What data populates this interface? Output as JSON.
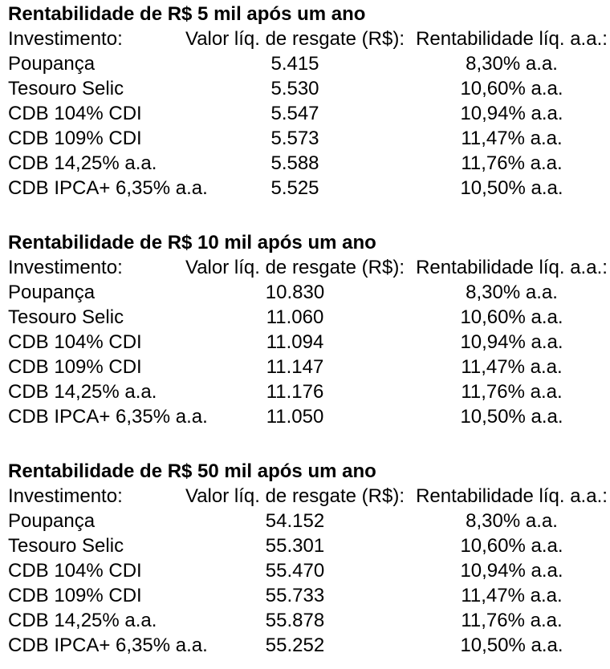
{
  "page": {
    "background_color": "#ffffff",
    "text_color": "#000000"
  },
  "sections": [
    {
      "title": "Rentabilidade de R$ 5 mil após um ano",
      "columns": [
        "Investimento:",
        "Valor líq. de resgate (R$):",
        "Rentabilidade líq. a.a.:"
      ],
      "rows": [
        {
          "investimento": "Poupança",
          "valor": "5.415",
          "rentabilidade": "8,30% a.a."
        },
        {
          "investimento": "Tesouro Selic",
          "valor": "5.530",
          "rentabilidade": "10,60% a.a."
        },
        {
          "investimento": "CDB 104% CDI",
          "valor": "5.547",
          "rentabilidade": "10,94% a.a."
        },
        {
          "investimento": "CDB 109% CDI",
          "valor": "5.573",
          "rentabilidade": "11,47% a.a."
        },
        {
          "investimento": "CDB 14,25% a.a.",
          "valor": "5.588",
          "rentabilidade": "11,76% a.a."
        },
        {
          "investimento": "CDB IPCA+ 6,35% a.a.",
          "valor": "5.525",
          "rentabilidade": "10,50% a.a."
        }
      ]
    },
    {
      "title": "Rentabilidade de R$ 10 mil após um ano",
      "columns": [
        "Investimento:",
        "Valor líq. de resgate (R$):",
        "Rentabilidade líq. a.a.:"
      ],
      "rows": [
        {
          "investimento": "Poupança",
          "valor": "10.830",
          "rentabilidade": "8,30% a.a."
        },
        {
          "investimento": "Tesouro Selic",
          "valor": "11.060",
          "rentabilidade": "10,60% a.a."
        },
        {
          "investimento": "CDB 104% CDI",
          "valor": "11.094",
          "rentabilidade": "10,94% a.a."
        },
        {
          "investimento": "CDB 109% CDI",
          "valor": "11.147",
          "rentabilidade": "11,47% a.a."
        },
        {
          "investimento": "CDB 14,25% a.a.",
          "valor": "11.176",
          "rentabilidade": "11,76% a.a."
        },
        {
          "investimento": "CDB IPCA+ 6,35% a.a.",
          "valor": "11.050",
          "rentabilidade": "10,50% a.a."
        }
      ]
    },
    {
      "title": "Rentabilidade de R$ 50 mil após um ano",
      "columns": [
        "Investimento:",
        "Valor líq. de resgate (R$):",
        "Rentabilidade líq. a.a.:"
      ],
      "rows": [
        {
          "investimento": "Poupança",
          "valor": "54.152",
          "rentabilidade": "8,30% a.a."
        },
        {
          "investimento": "Tesouro Selic",
          "valor": "55.301",
          "rentabilidade": "10,60% a.a."
        },
        {
          "investimento": "CDB 104% CDI",
          "valor": "55.470",
          "rentabilidade": "10,94% a.a."
        },
        {
          "investimento": "CDB 109% CDI",
          "valor": "55.733",
          "rentabilidade": "11,47% a.a."
        },
        {
          "investimento": "CDB 14,25% a.a.",
          "valor": "55.878",
          "rentabilidade": "11,76% a.a."
        },
        {
          "investimento": "CDB IPCA+ 6,35% a.a.",
          "valor": "55.252",
          "rentabilidade": "10,50% a.a."
        }
      ]
    }
  ]
}
